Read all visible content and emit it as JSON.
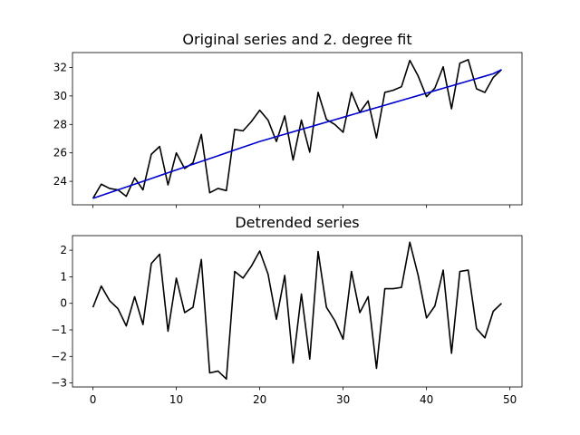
{
  "chart_data": [
    {
      "type": "line",
      "title": "Original series and 2. degree fit",
      "xlabel": "",
      "ylabel": "",
      "xlim": [
        -2.45,
        51.45
      ],
      "ylim": [
        22.35,
        33.05
      ],
      "grid": false,
      "x_ticks": [
        0,
        10,
        20,
        30,
        40,
        50
      ],
      "x_tick_labels_visible": false,
      "y_ticks": [
        24,
        26,
        28,
        30,
        32
      ],
      "y_tick_labels": [
        "24",
        "26",
        "28",
        "30",
        "32"
      ],
      "x": [
        0,
        1,
        2,
        3,
        4,
        5,
        6,
        7,
        8,
        9,
        10,
        11,
        12,
        13,
        14,
        15,
        16,
        17,
        18,
        19,
        20,
        21,
        22,
        23,
        24,
        25,
        26,
        27,
        28,
        29,
        30,
        31,
        32,
        33,
        34,
        35,
        36,
        37,
        38,
        39,
        40,
        41,
        42,
        43,
        44,
        45,
        46,
        47,
        48,
        49
      ],
      "series": [
        {
          "color": "#000000",
          "values": [
            22.8,
            23.8,
            23.5,
            23.4,
            22.95,
            24.25,
            23.4,
            25.9,
            26.45,
            23.75,
            26.0,
            24.9,
            25.3,
            27.3,
            23.2,
            23.5,
            23.35,
            27.65,
            27.55,
            28.2,
            29.0,
            28.3,
            26.8,
            28.6,
            25.5,
            28.3,
            26.05,
            30.25,
            28.35,
            28.0,
            27.45,
            30.25,
            28.85,
            29.65,
            27.05,
            30.25,
            30.4,
            30.65,
            32.5,
            31.4,
            29.95,
            30.55,
            32.05,
            29.1,
            32.3,
            32.55,
            30.5,
            30.25,
            31.3,
            31.85
          ]
        },
        {
          "color": "#0000cc",
          "values": [
            22.8,
            23.0,
            23.2,
            23.4,
            23.6,
            23.8,
            24.0,
            24.2,
            24.4,
            24.6,
            24.8,
            25.0,
            25.2,
            25.4,
            25.6,
            25.8,
            26.0,
            26.2,
            26.4,
            26.6,
            26.8,
            26.97,
            27.14,
            27.31,
            27.48,
            27.65,
            27.82,
            27.99,
            28.16,
            28.33,
            28.5,
            28.67,
            28.84,
            29.01,
            29.18,
            29.35,
            29.52,
            29.69,
            29.86,
            30.03,
            30.2,
            30.37,
            30.54,
            30.71,
            30.88,
            31.05,
            31.22,
            31.39,
            31.56,
            31.85
          ]
        }
      ]
    },
    {
      "type": "line",
      "title": "Detrended series",
      "xlabel": "",
      "ylabel": "",
      "xlim": [
        -2.45,
        51.45
      ],
      "ylim": [
        -3.15,
        2.55
      ],
      "grid": false,
      "x_ticks": [
        0,
        10,
        20,
        30,
        40,
        50
      ],
      "x_tick_labels": [
        "0",
        "10",
        "20",
        "30",
        "40",
        "50"
      ],
      "y_ticks": [
        -3,
        -2,
        -1,
        0,
        1,
        2
      ],
      "y_tick_labels": [
        "−3",
        "−2",
        "−1",
        "0",
        "1",
        "2"
      ],
      "x": [
        0,
        1,
        2,
        3,
        4,
        5,
        6,
        7,
        8,
        9,
        10,
        11,
        12,
        13,
        14,
        15,
        16,
        17,
        18,
        19,
        20,
        21,
        22,
        23,
        24,
        25,
        26,
        27,
        28,
        29,
        30,
        31,
        32,
        33,
        34,
        35,
        36,
        37,
        38,
        39,
        40,
        41,
        42,
        43,
        44,
        45,
        46,
        47,
        48,
        49
      ],
      "series": [
        {
          "color": "#000000",
          "values": [
            -0.15,
            0.65,
            0.1,
            -0.2,
            -0.85,
            0.25,
            -0.8,
            1.5,
            1.85,
            -1.05,
            0.95,
            -0.35,
            -0.15,
            1.65,
            -2.62,
            -2.55,
            -2.85,
            1.2,
            0.95,
            1.4,
            1.97,
            1.1,
            -0.6,
            1.05,
            -2.25,
            0.35,
            -2.1,
            1.95,
            -0.15,
            -0.65,
            -1.35,
            1.2,
            -0.35,
            0.25,
            -2.45,
            0.55,
            0.55,
            0.6,
            2.3,
            1.05,
            -0.55,
            -0.1,
            1.25,
            -1.88,
            1.2,
            1.25,
            -0.95,
            -1.3,
            -0.3,
            0.0
          ]
        }
      ]
    }
  ]
}
